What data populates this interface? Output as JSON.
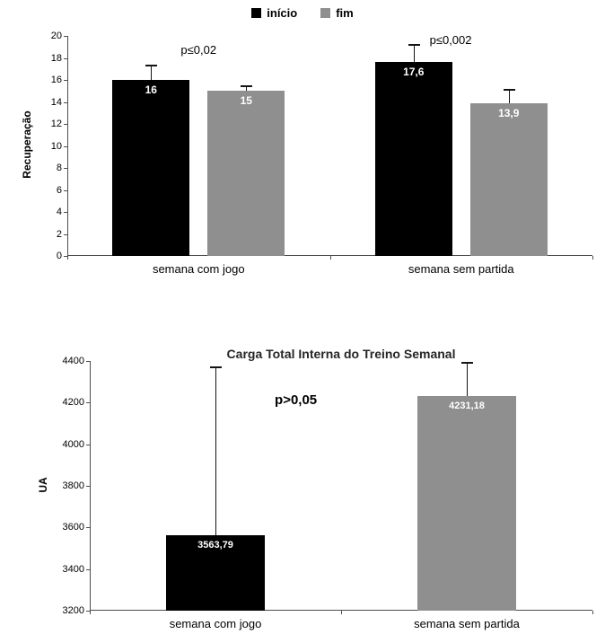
{
  "chart_data": [
    {
      "type": "bar",
      "title": "",
      "ylabel": "Recuperação",
      "xlabel": "",
      "ylim": [
        0,
        20
      ],
      "yticks": [
        0,
        2,
        4,
        6,
        8,
        10,
        12,
        14,
        16,
        18,
        20
      ],
      "grid": false,
      "legend_position": "top",
      "categories": [
        "semana com jogo",
        "semana sem partida"
      ],
      "series": [
        {
          "name": "início",
          "color": "#000000",
          "values": [
            16,
            17.6
          ],
          "value_labels": [
            "16",
            "17,6"
          ],
          "errors": [
            1.4,
            1.7
          ]
        },
        {
          "name": "fim",
          "color": "#8f8f8f",
          "values": [
            15,
            13.9
          ],
          "value_labels": [
            "15",
            "13,9"
          ],
          "errors": [
            0.5,
            1.3
          ]
        }
      ],
      "annotations": [
        {
          "text": "p≤0,02",
          "x_pct": 0.25,
          "y_value": 18.6
        },
        {
          "text": "p≤0,002",
          "x_pct": 0.73,
          "y_value": 19.5
        }
      ]
    },
    {
      "type": "bar",
      "title": "Carga Total Interna do Treino Semanal",
      "ylabel": "UA",
      "xlabel": "",
      "ylim": [
        3200,
        4400
      ],
      "yticks": [
        3200,
        3400,
        3600,
        3800,
        4000,
        4200,
        4400
      ],
      "grid": false,
      "legend_position": "none",
      "categories": [
        "semana com jogo",
        "semana sem partida"
      ],
      "series": [
        {
          "name": "",
          "colors": [
            "#000000",
            "#8f8f8f"
          ],
          "values": [
            3563.79,
            4231.18
          ],
          "value_labels": [
            "3563,79",
            "4231,18"
          ],
          "errors": [
            810,
            165
          ]
        }
      ],
      "annotations": [
        {
          "text": "p>0,05",
          "x_pct": 0.41,
          "y_value": 4210
        }
      ]
    }
  ]
}
